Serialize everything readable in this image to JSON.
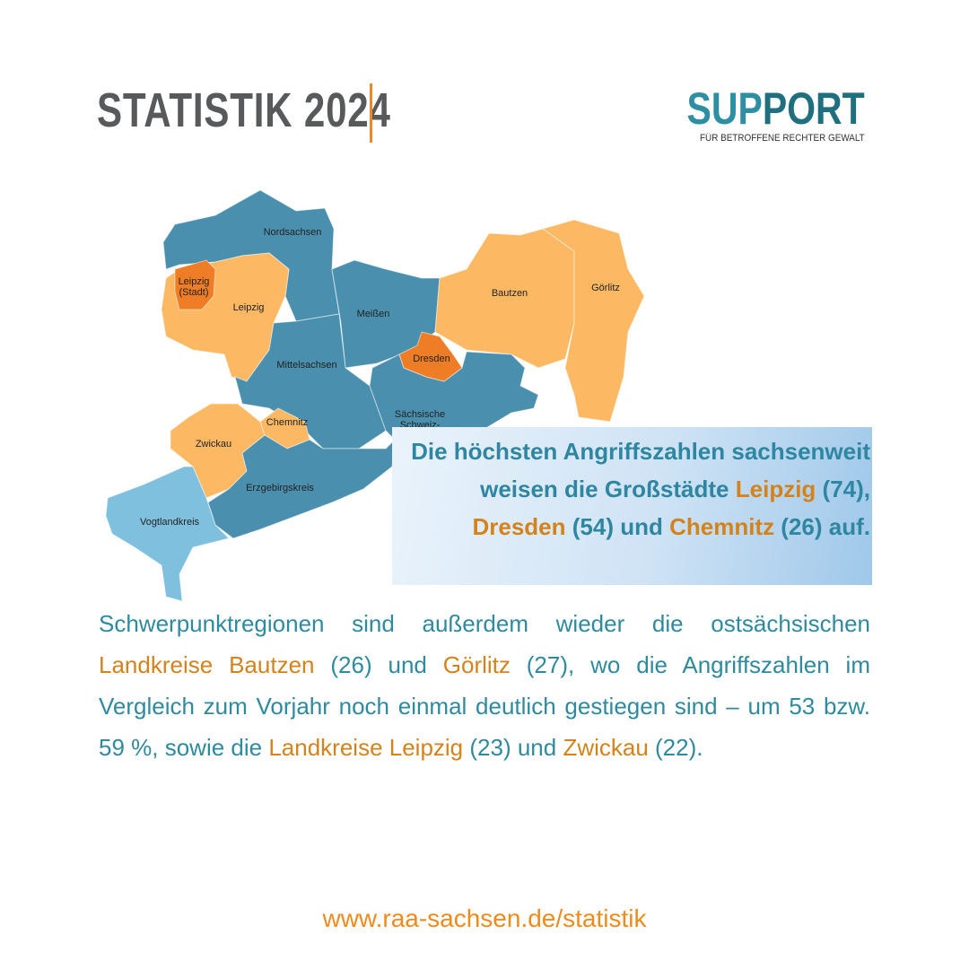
{
  "header": {
    "title": "STATISTIK 2024",
    "logo": {
      "name_part1": "SUP",
      "name_part2": "PORT",
      "tagline": "FÜR BETROFFENE RECHTER GEWALT"
    }
  },
  "map": {
    "regions": [
      {
        "lines": [
          "Nordsachsen"
        ]
      },
      {
        "lines": [
          "Leipzig",
          "(Stadt)"
        ]
      },
      {
        "lines": [
          "Leipzig"
        ]
      },
      {
        "lines": [
          "Meißen"
        ]
      },
      {
        "lines": [
          "Bautzen"
        ]
      },
      {
        "lines": [
          "Görlitz"
        ]
      },
      {
        "lines": [
          "Dresden"
        ]
      },
      {
        "lines": [
          "Mittelsachsen"
        ]
      },
      {
        "lines": [
          "Sächsische",
          "Schweiz-"
        ]
      },
      {
        "lines": [
          "Chemnitz"
        ]
      },
      {
        "lines": [
          "Zwickau"
        ]
      },
      {
        "lines": [
          "Erzgebirgskreis"
        ]
      },
      {
        "lines": [
          "Vogtlandkreis"
        ]
      }
    ]
  },
  "callout": {
    "segments": [
      {
        "text": "Die höchsten Angriffszahlen sachsenweit weisen die Großstädte ",
        "highlight": false
      },
      {
        "text": "Leipzig",
        "highlight": true
      },
      {
        "text": " (74), ",
        "highlight": false
      },
      {
        "text": "Dresden",
        "highlight": true
      },
      {
        "text": " (54) und ",
        "highlight": false
      },
      {
        "text": "Chemnitz",
        "highlight": true
      },
      {
        "text": " (26) auf.",
        "highlight": false
      }
    ]
  },
  "body": {
    "segments": [
      {
        "text": "Schwerpunktregionen sind außerdem wieder die ostsächsischen ",
        "highlight": false
      },
      {
        "text": "Landkreise Bautzen",
        "highlight": true
      },
      {
        "text": " (26) und ",
        "highlight": false
      },
      {
        "text": "Görlitz",
        "highlight": true
      },
      {
        "text": " (27), wo die Angriffszahlen im Vergleich zum Vorjahr noch einmal deutlich gestiegen sind – um 53 bzw. 59 %, sowie die ",
        "highlight": false
      },
      {
        "text": "Landkreise Leipzig",
        "highlight": true
      },
      {
        "text": " (23) und ",
        "highlight": false
      },
      {
        "text": "Zwickau",
        "highlight": true
      },
      {
        "text": " (22).",
        "highlight": false
      }
    ]
  },
  "footer": {
    "url": "www.raa-sachsen.de/statistik"
  }
}
